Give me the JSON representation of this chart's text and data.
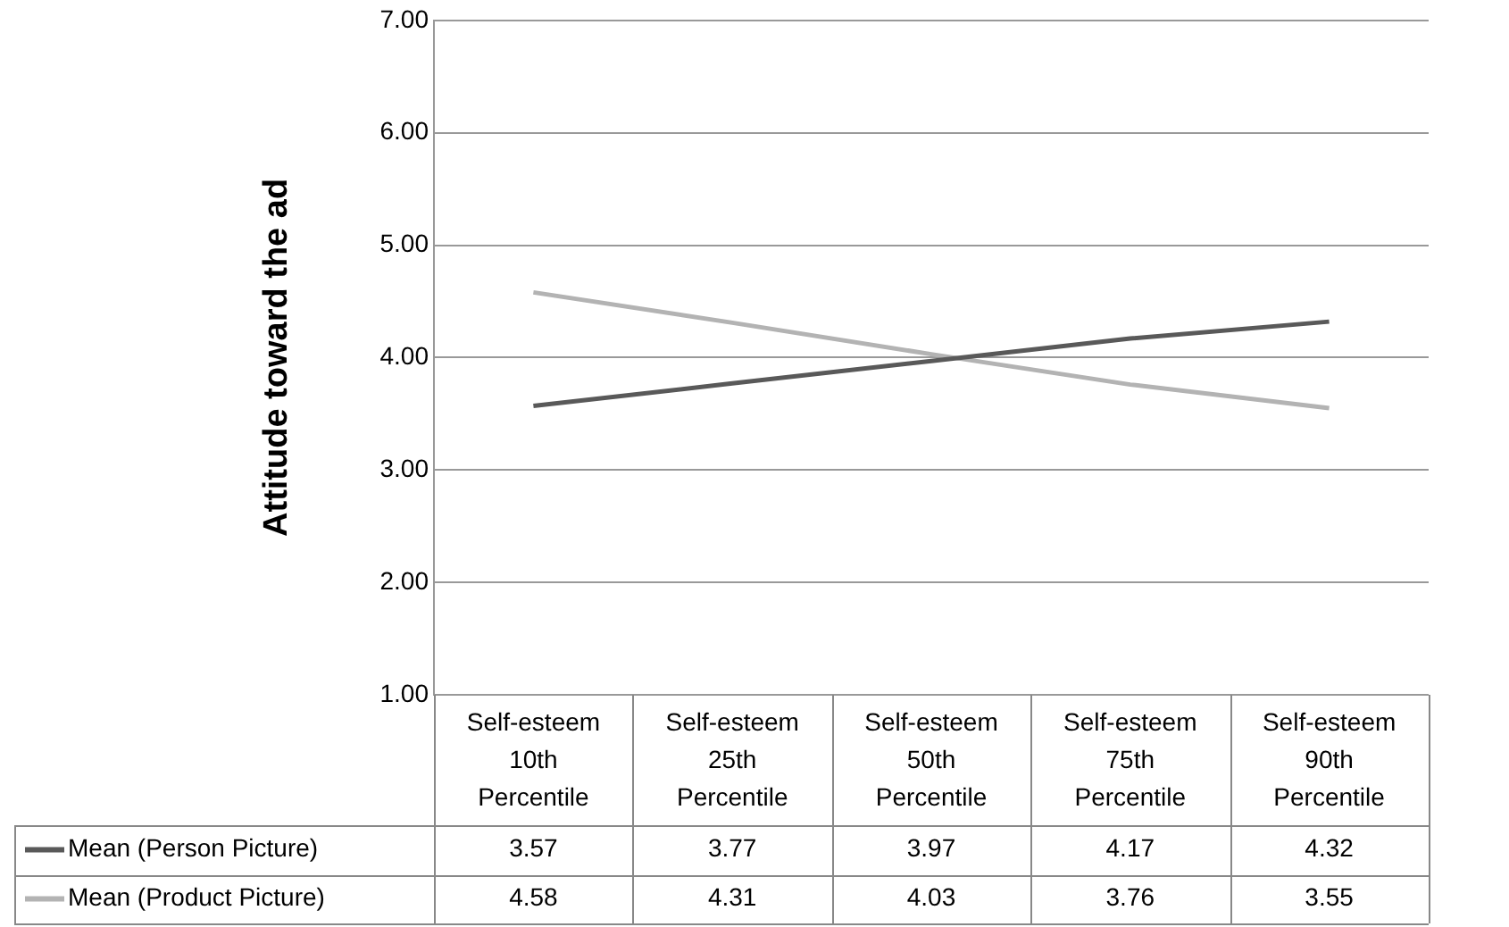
{
  "chart_data": {
    "type": "line",
    "ylabel": "Attitude toward the ad",
    "categories": [
      "Self-esteem 10th Percentile",
      "Self-esteem 25th Percentile",
      "Self-esteem 50th Percentile",
      "Self-esteem 75th Percentile",
      "Self-esteem 90th Percentile"
    ],
    "series": [
      {
        "name": "Mean (Person Picture)",
        "color": "#595959",
        "values": [
          3.57,
          3.77,
          3.97,
          4.17,
          4.32
        ]
      },
      {
        "name": "Mean (Product Picture)",
        "color": "#b3b3b3",
        "values": [
          4.58,
          4.31,
          4.03,
          3.76,
          3.55
        ]
      }
    ],
    "ylim": [
      1,
      7
    ],
    "yticks": [
      {
        "value": 1,
        "label": "1.00"
      },
      {
        "value": 2,
        "label": "2.00"
      },
      {
        "value": 3,
        "label": "3.00"
      },
      {
        "value": 4,
        "label": "4.00"
      },
      {
        "value": 5,
        "label": "5.00"
      },
      {
        "value": 6,
        "label": "6.00"
      },
      {
        "value": 7,
        "label": "7.00"
      }
    ],
    "grid": "y",
    "legend": "bottom left",
    "data_labels": true,
    "marker": "none",
    "line_style": "solid"
  }
}
